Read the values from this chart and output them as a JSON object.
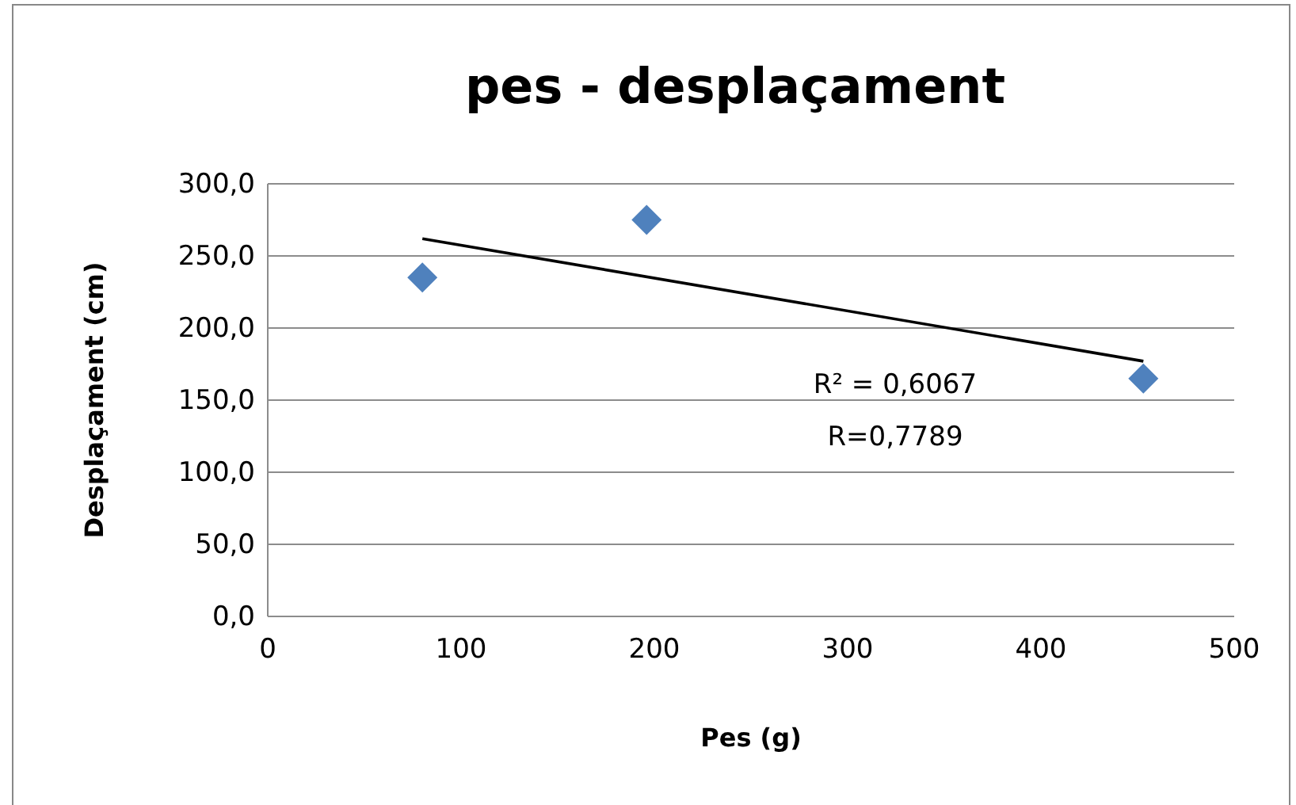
{
  "chart_data": {
    "type": "scatter",
    "title": "pes - desplaçament",
    "xlabel": "Pes (g)",
    "ylabel": "Desplaçament (cm)",
    "xlim": [
      0,
      500
    ],
    "xticks": [
      0,
      100,
      200,
      300,
      400,
      500
    ],
    "ylim": [
      0,
      300
    ],
    "yticks": [
      {
        "value": 0,
        "label": "0,0"
      },
      {
        "value": 50,
        "label": "50,0"
      },
      {
        "value": 100,
        "label": "100,0"
      },
      {
        "value": 150,
        "label": "150,0"
      },
      {
        "value": 200,
        "label": "200,0"
      },
      {
        "value": 250,
        "label": "250,0"
      },
      {
        "value": 300,
        "label": "300,0"
      }
    ],
    "grid": "y",
    "marker": "diamond",
    "series": [
      {
        "color": "#4f81bd",
        "x": [
          80,
          196,
          453
        ],
        "values": [
          235,
          275,
          165
        ]
      },
      {
        "type": "line",
        "color": "#000000",
        "x": [
          80,
          453
        ],
        "values": [
          262,
          177
        ],
        "marker": "none",
        "line_style": "solid"
      }
    ],
    "annotations": [
      "R² = 0,6067",
      "R=0,7789"
    ]
  }
}
